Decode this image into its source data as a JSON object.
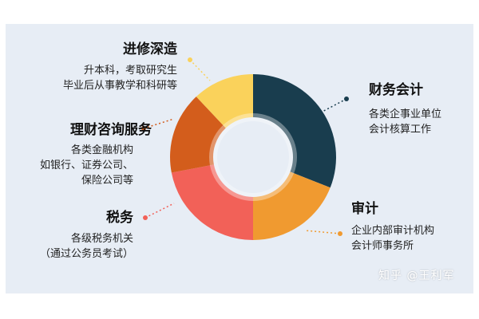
{
  "chart_data": {
    "type": "pie",
    "variant": "donut",
    "slices": [
      {
        "name": "财务会计",
        "value": 31,
        "color": "#193d4e",
        "desc": [
          "各类企事业单位",
          "会计核算工作"
        ]
      },
      {
        "name": "审计",
        "value": 19,
        "color": "#f09a30",
        "desc": [
          "企业内部审计机构",
          "会计师事务所"
        ]
      },
      {
        "name": "税务",
        "value": 22,
        "color": "#f26158",
        "desc": [
          "各级税务机关",
          "（通过公务员考试）"
        ]
      },
      {
        "name": "理财咨询服务",
        "value": 16,
        "color": "#d35d1c",
        "desc": [
          "各类金融机构",
          "如银行、证券公司、",
          "保险公司等"
        ]
      },
      {
        "name": "进修深造",
        "value": 12,
        "color": "#fad25b",
        "desc": [
          "升本科，考取研究生",
          "毕业后从事教学和科研等"
        ]
      }
    ]
  },
  "watermark": "知乎 @王利军"
}
